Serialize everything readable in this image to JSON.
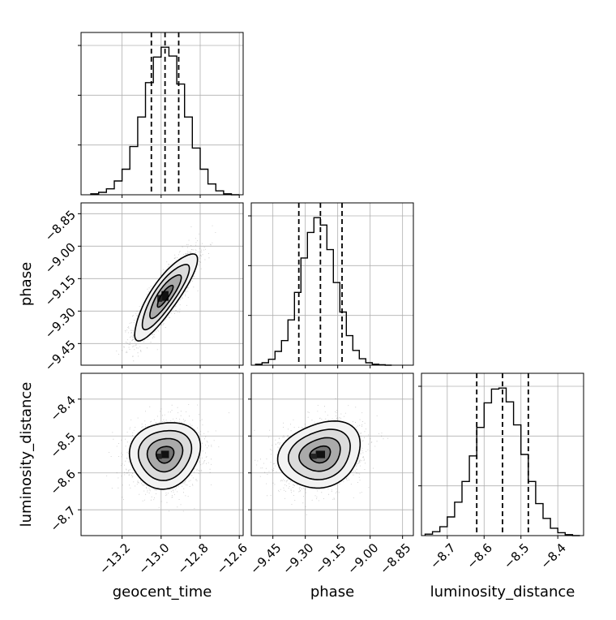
{
  "chart_data": {
    "type": "corner",
    "parameters": [
      "geocent_time",
      "phase",
      "luminosity_distance"
    ],
    "axis_labels": [
      "geocent_time",
      "phase",
      "luminosity_distance"
    ],
    "ranges": {
      "geocent_time": [
        -13.41,
        -12.58
      ],
      "phase": [
        -9.55,
        -8.8
      ],
      "luminosity_distance": [
        -8.77,
        -8.33
      ]
    },
    "ticks": {
      "geocent_time": [
        -13.2,
        -13.0,
        -12.8,
        -12.6
      ],
      "phase": [
        -9.45,
        -9.3,
        -9.15,
        -9.0,
        -8.85
      ],
      "luminosity_distance": [
        -8.7,
        -8.6,
        -8.5,
        -8.4
      ]
    },
    "tick_labels": {
      "geocent_time": [
        "−13.2",
        "−13.0",
        "−12.8",
        "−12.6"
      ],
      "phase": [
        "−9.45",
        "−9.30",
        "−9.15",
        "−9.00",
        "−8.85"
      ],
      "luminosity_distance": [
        "−8.7",
        "−8.6",
        "−8.5",
        "−8.4"
      ]
    },
    "quantiles": {
      "geocent_time": [
        -13.05,
        -12.98,
        -12.91
      ],
      "phase": [
        -9.33,
        -9.23,
        -9.13
      ],
      "luminosity_distance": [
        -8.62,
        -8.55,
        -8.48
      ]
    },
    "histograms": {
      "geocent_time": {
        "edges": [
          -13.36,
          -13.32,
          -13.28,
          -13.24,
          -13.2,
          -13.16,
          -13.12,
          -13.08,
          -13.04,
          -13.0,
          -12.96,
          -12.92,
          -12.88,
          -12.84,
          -12.8,
          -12.76,
          -12.72,
          -12.68,
          -12.64,
          -12.6
        ],
        "counts": [
          2,
          5,
          12,
          28,
          52,
          98,
          158,
          228,
          280,
          300,
          282,
          225,
          158,
          95,
          52,
          22,
          8,
          2,
          0
        ]
      },
      "phase": {
        "edges": [
          -9.53,
          -9.5,
          -9.47,
          -9.44,
          -9.41,
          -9.38,
          -9.35,
          -9.32,
          -9.29,
          -9.26,
          -9.23,
          -9.2,
          -9.17,
          -9.14,
          -9.11,
          -9.08,
          -9.05,
          -9.02,
          -8.99,
          -8.96,
          -8.93,
          -8.9
        ],
        "counts": [
          2,
          5,
          12,
          28,
          50,
          92,
          148,
          218,
          270,
          300,
          285,
          235,
          168,
          108,
          60,
          30,
          13,
          5,
          2,
          1,
          0
        ]
      },
      "luminosity_distance": {
        "edges": [
          -8.76,
          -8.74,
          -8.72,
          -8.7,
          -8.68,
          -8.66,
          -8.64,
          -8.62,
          -8.6,
          -8.58,
          -8.56,
          -8.54,
          -8.52,
          -8.5,
          -8.48,
          -8.46,
          -8.44,
          -8.42,
          -8.4,
          -8.38,
          -8.36,
          -8.34
        ],
        "counts": [
          3,
          8,
          18,
          38,
          68,
          110,
          162,
          220,
          270,
          298,
          300,
          272,
          225,
          165,
          110,
          65,
          35,
          15,
          6,
          2,
          0
        ]
      }
    },
    "pairs": [
      {
        "x": "geocent_time",
        "y": "phase",
        "mean": [
          -12.98,
          -9.23
        ],
        "sd": [
          0.08,
          0.1
        ],
        "rho": 0.85
      },
      {
        "x": "geocent_time",
        "y": "luminosity_distance",
        "mean": [
          -12.98,
          -8.55
        ],
        "sd": [
          0.09,
          0.045
        ],
        "rho": 0.1
      },
      {
        "x": "phase",
        "y": "luminosity_distance",
        "mean": [
          -9.23,
          -8.55
        ],
        "sd": [
          0.095,
          0.045
        ],
        "rho": 0.2
      }
    ],
    "contour_levels": [
      0.5,
      1.0,
      1.5,
      2.0
    ],
    "grid": true,
    "legend": "none",
    "colors": {
      "line": "#000000",
      "points": "#000000",
      "grid": "#b0b0b0"
    }
  }
}
